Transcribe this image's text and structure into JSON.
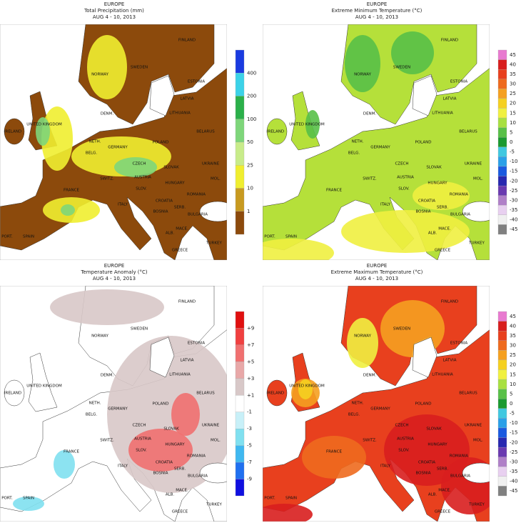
{
  "panels": [
    {
      "region": "EUROPE",
      "title": "Total Precipitation (mm)",
      "period": "AUG 4 - 10, 2013",
      "land_color": "#8c4a0c",
      "legend": {
        "labels": [
          "400",
          "200",
          "100",
          "50",
          "25",
          "10",
          "1"
        ],
        "colors": [
          "#1a3be0",
          "#3cd2e8",
          "#2bb04a",
          "#7ed67a",
          "#c8ec8a",
          "#f0ee30",
          "#c89a20",
          "#8c4a0c"
        ]
      },
      "places": [
        "NORWAY",
        "SWEDEN",
        "FINLAND",
        "ESTONIA",
        "LATVIA",
        "LITHUANIA",
        "BELARUS",
        "DENM.",
        "UNITED KINGDOM",
        "IRELAND",
        "NETH.",
        "BELG.",
        "GERMANY",
        "POLAND",
        "CZECH",
        "SLOVAK",
        "UKRAINE",
        "FRANCE",
        "SWITZ.",
        "AUSTRIA",
        "HUNGARY",
        "ROMANIA",
        "MOL.",
        "SLOV.",
        "CROATIA",
        "ITALY",
        "SERB.",
        "BOSNIA",
        "BULGARIA",
        "MACE.",
        "ALB.",
        "GREECE",
        "TURKEY",
        "SPAIN",
        "PORT."
      ]
    },
    {
      "region": "EUROPE",
      "title": "Extreme Minimum Temperature (°C)",
      "period": "AUG 4 - 10, 2013",
      "land_color": "#b5e03a",
      "legend": {
        "labels": [
          "45",
          "40",
          "35",
          "30",
          "25",
          "20",
          "15",
          "10",
          "5",
          "0",
          "-5",
          "-10",
          "-15",
          "-20",
          "-25",
          "-30",
          "-35",
          "-40",
          "-45"
        ],
        "colors": [
          "#e87ad0",
          "#d81e1e",
          "#e8401e",
          "#ee6a1e",
          "#f5a020",
          "#f5d020",
          "#f0f040",
          "#a8e040",
          "#58c048",
          "#1a9a30",
          "#40c8e0",
          "#2aa0e8",
          "#1a5ae0",
          "#2828b0",
          "#6a3ab0",
          "#b080c8",
          "#e8d0f0",
          "#f0f0f0",
          "#808080"
        ]
      },
      "places": [
        "NORWAY",
        "SWEDEN",
        "FINLAND",
        "ESTONIA",
        "LATVIA",
        "LITHUANIA",
        "BELARUS",
        "DENM.",
        "UNITED KINGDOM",
        "IRELAND",
        "NETH.",
        "BELG.",
        "GERMANY",
        "POLAND",
        "CZECH",
        "SLOVAK",
        "UKRAINE",
        "FRANCE",
        "SWITZ.",
        "AUSTRIA",
        "HUNGARY",
        "ROMANIA",
        "MOL.",
        "SLOV.",
        "CROATIA",
        "ITALY",
        "SERB.",
        "BOSNIA",
        "BULGARIA",
        "MACE.",
        "ALB.",
        "GREECE",
        "TURKEY",
        "SPAIN",
        "PORT."
      ]
    },
    {
      "region": "EUROPE",
      "title": "Temperature Anomaly (°C)",
      "period": "AUG 4 - 10, 2013",
      "land_color": "#ffffff",
      "legend": {
        "labels": [
          "+9",
          "+7",
          "+5",
          "+3",
          "+1",
          "-1",
          "-3",
          "-5",
          "-7",
          "-9"
        ],
        "colors": [
          "#e01010",
          "#f04040",
          "#f07070",
          "#e8a8a8",
          "#d8c8c8",
          "#ffffff",
          "#c8f0f8",
          "#80e0f0",
          "#40b8f0",
          "#2070f0",
          "#1010e0"
        ]
      },
      "places": [
        "NORWAY",
        "SWEDEN",
        "FINLAND",
        "ESTONIA",
        "LATVIA",
        "LITHUANIA",
        "BELARUS",
        "DENM.",
        "UNITED KINGDOM",
        "IRELAND",
        "NETH.",
        "BELG.",
        "GERMANY",
        "POLAND",
        "CZECH",
        "SLOVAK",
        "UKRAINE",
        "FRANCE",
        "SWITZ.",
        "AUSTRIA",
        "HUNGARY",
        "ROMANIA",
        "MOL.",
        "SLOV.",
        "CROATIA",
        "ITALY",
        "SERB.",
        "BOSNIA",
        "BULGARIA",
        "MACE.",
        "ALB.",
        "GREECE",
        "TURKEY",
        "SPAIN",
        "PORT."
      ]
    },
    {
      "region": "EUROPE",
      "title": "Extreme Maximum Temperature (°C)",
      "period": "AUG 4 - 10, 2013",
      "land_color": "#e8401e",
      "legend": {
        "labels": [
          "45",
          "40",
          "35",
          "30",
          "25",
          "20",
          "15",
          "10",
          "5",
          "0",
          "-5",
          "-10",
          "-15",
          "-20",
          "-25",
          "-30",
          "-35",
          "-40",
          "-45"
        ],
        "colors": [
          "#e87ad0",
          "#d81e1e",
          "#e8401e",
          "#ee6a1e",
          "#f5a020",
          "#f5d020",
          "#f0f040",
          "#a8e040",
          "#58c048",
          "#1a9a30",
          "#40c8e0",
          "#2aa0e8",
          "#1a5ae0",
          "#2828b0",
          "#6a3ab0",
          "#b080c8",
          "#e8d0f0",
          "#f0f0f0",
          "#808080"
        ]
      },
      "places": [
        "NORWAY",
        "SWEDEN",
        "FINLAND",
        "ESTONIA",
        "LATVIA",
        "LITHUANIA",
        "BELARUS",
        "DENM.",
        "UNITED KINGDOM",
        "IRELAND",
        "NETH.",
        "BELG.",
        "GERMANY",
        "POLAND",
        "CZECH",
        "SLOVAK",
        "UKRAINE",
        "FRANCE",
        "SWITZ.",
        "AUSTRIA",
        "HUNGARY",
        "ROMANIA",
        "MOL.",
        "SLOV.",
        "CROATIA",
        "ITALY",
        "SERB.",
        "BOSNIA",
        "BULGARIA",
        "MACE.",
        "ALB.",
        "GREECE",
        "TURKEY",
        "SPAIN",
        "PORT."
      ]
    }
  ]
}
